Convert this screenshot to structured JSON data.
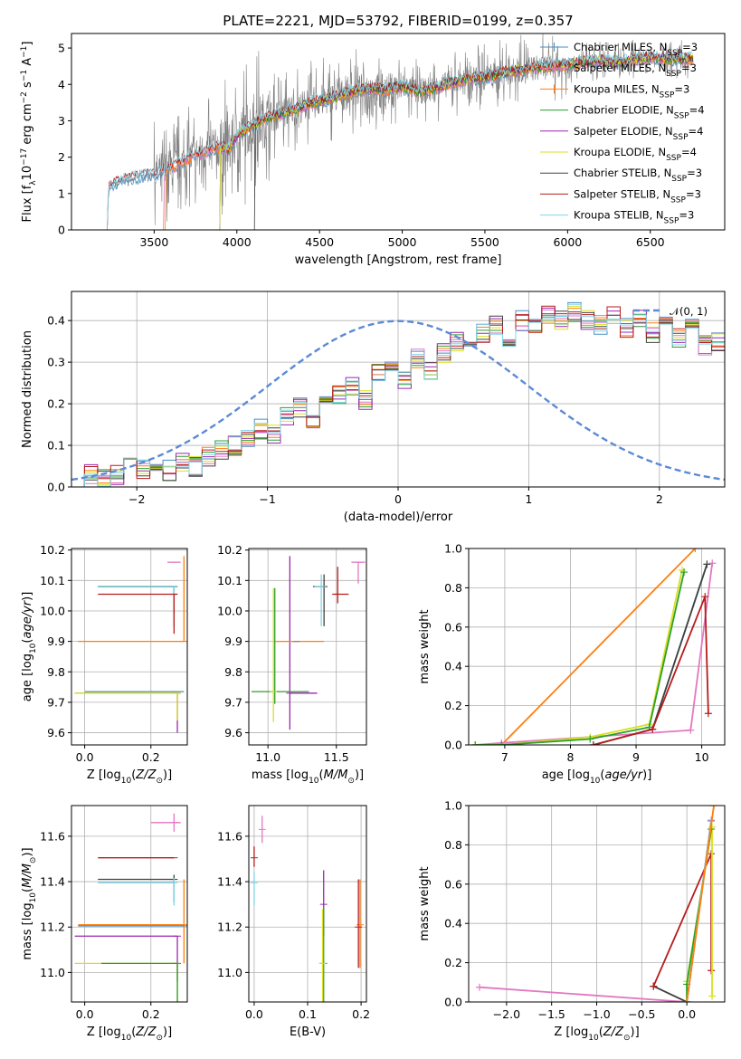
{
  "figure_title": "PLATE=2221, MJD=53792, FIBERID=0199, z=0.357",
  "colors": {
    "Chabrier MILES": "#4a8fc1",
    "Salpeter MILES": "#e377c2",
    "Kroupa MILES": "#ff7f0e",
    "Chabrier ELODIE": "#2ca02c",
    "Salpeter ELODIE": "#9c27b0",
    "Kroupa ELODIE": "#d9e021",
    "Chabrier STELIB": "#404040",
    "Salpeter STELIB": "#b71c1c",
    "Kroupa STELIB": "#80d4e8",
    "data": "#808080",
    "normal": "#5b8ad6"
  },
  "legend_spectrum": [
    {
      "name": "Chabrier MILES",
      "nssp": "3",
      "key": "Chabrier MILES"
    },
    {
      "name": "Salpeter MILES",
      "nssp": "3",
      "key": "Salpeter MILES"
    },
    {
      "name": "Kroupa MILES",
      "nssp": "3",
      "key": "Kroupa MILES"
    },
    {
      "name": "Chabrier ELODIE",
      "nssp": "4",
      "key": "Chabrier ELODIE"
    },
    {
      "name": "Salpeter ELODIE",
      "nssp": "4",
      "key": "Salpeter ELODIE"
    },
    {
      "name": "Kroupa ELODIE",
      "nssp": "4",
      "key": "Kroupa ELODIE"
    },
    {
      "name": "Chabrier STELIB",
      "nssp": "3",
      "key": "Chabrier STELIB"
    },
    {
      "name": "Salpeter STELIB",
      "nssp": "3",
      "key": "Salpeter STELIB"
    },
    {
      "name": "Kroupa STELIB",
      "nssp": "3",
      "key": "Kroupa STELIB"
    }
  ],
  "legend_hist": "𝒩(0, 1)",
  "chart_data": [
    {
      "id": "spectrum",
      "type": "line",
      "xlabel": "wavelength [Angstrom, rest frame]",
      "ylabel": "Flux [f_λ 10^-17 erg cm^-2 s^-1 A^-1]",
      "xlim": [
        3000,
        6950
      ],
      "ylim": [
        0,
        5.4
      ],
      "xticks": [
        3500,
        4000,
        4500,
        5000,
        5500,
        6000,
        6500
      ],
      "yticks": [
        0,
        1,
        2,
        3,
        4,
        5
      ],
      "model_continuum": [
        [
          3200,
          0.0
        ],
        [
          3230,
          1.2
        ],
        [
          3300,
          1.35
        ],
        [
          3400,
          1.45
        ],
        [
          3500,
          1.55
        ],
        [
          3600,
          1.7
        ],
        [
          3700,
          1.95
        ],
        [
          3800,
          2.15
        ],
        [
          3900,
          2.3
        ],
        [
          3950,
          2.2
        ],
        [
          4000,
          2.6
        ],
        [
          4100,
          2.9
        ],
        [
          4200,
          3.1
        ],
        [
          4300,
          3.25
        ],
        [
          4400,
          3.4
        ],
        [
          4500,
          3.55
        ],
        [
          4600,
          3.65
        ],
        [
          4700,
          3.8
        ],
        [
          4800,
          3.9
        ],
        [
          4900,
          3.85
        ],
        [
          5000,
          3.95
        ],
        [
          5100,
          3.8
        ],
        [
          5200,
          3.9
        ],
        [
          5300,
          4.05
        ],
        [
          5400,
          4.15
        ],
        [
          5500,
          4.2
        ],
        [
          5600,
          4.3
        ],
        [
          5700,
          4.4
        ],
        [
          5800,
          4.45
        ],
        [
          5900,
          4.5
        ],
        [
          6000,
          4.55
        ],
        [
          6100,
          4.6
        ],
        [
          6200,
          4.65
        ],
        [
          6300,
          4.6
        ],
        [
          6400,
          4.7
        ],
        [
          6500,
          4.75
        ],
        [
          6600,
          4.7
        ],
        [
          6760,
          4.7
        ]
      ],
      "grid": false
    },
    {
      "id": "residual_hist",
      "type": "step",
      "xlabel": "(data-model)/error",
      "ylabel": "Normed distribution",
      "xlim": [
        -2.5,
        2.5
      ],
      "ylim": [
        0,
        0.47
      ],
      "xticks": [
        -2,
        -1,
        0,
        1,
        2
      ],
      "yticks": [
        0.0,
        0.1,
        0.2,
        0.3,
        0.4
      ],
      "bin_width": 0.1,
      "bin_start": -2.5,
      "base_values": [
        0.02,
        0.03,
        0.02,
        0.03,
        0.05,
        0.04,
        0.05,
        0.04,
        0.06,
        0.05,
        0.07,
        0.09,
        0.1,
        0.12,
        0.14,
        0.13,
        0.17,
        0.19,
        0.16,
        0.2,
        0.22,
        0.24,
        0.21,
        0.27,
        0.3,
        0.26,
        0.31,
        0.28,
        0.32,
        0.35,
        0.33,
        0.37,
        0.39,
        0.35,
        0.4,
        0.38,
        0.41,
        0.4,
        0.42,
        0.4,
        0.39,
        0.41,
        0.38,
        0.4,
        0.37,
        0.39,
        0.36,
        0.38,
        0.34,
        0.35,
        0.33,
        0.31,
        0.32,
        0.29,
        0.3,
        0.28,
        0.26,
        0.25,
        0.24,
        0.2,
        0.22,
        0.18,
        0.19,
        0.16,
        0.15,
        0.13,
        0.12,
        0.11,
        0.1,
        0.09,
        0.08,
        0.07,
        0.08,
        0.06,
        0.07,
        0.05,
        0.06,
        0.05,
        0.04,
        0.05,
        0.04,
        0.04,
        0.05,
        0.04,
        0.03,
        0.04,
        0.03,
        0.04,
        0.03,
        0.04,
        0.05,
        0.04,
        0.03,
        0.04,
        0.04,
        0.05,
        0.04,
        0.04,
        0.05,
        0.04
      ],
      "grid": true
    },
    {
      "id": "age_vs_Z",
      "type": "errorbar",
      "xlabel": "Z [log10(Z/Z☉)]",
      "ylabel": "age [log10(age/yr)]",
      "xlim": [
        -0.04,
        0.31
      ],
      "ylim": [
        9.56,
        10.205
      ],
      "xticks": [
        0.0,
        0.2
      ],
      "yticks": [
        9.6,
        9.7,
        9.8,
        9.9,
        10.0,
        10.1,
        10.2
      ],
      "points": [
        {
          "s": "Salpeter MILES",
          "x": 0.27,
          "xe": [
            0.02,
            0.02
          ],
          "y": 10.16,
          "ye": [
            0,
            0.0
          ]
        },
        {
          "s": "Chabrier ELODIE",
          "x": 0.27,
          "xe": [
            0.23,
            0.01
          ],
          "y": 10.08,
          "ye": [
            0.13,
            0.0
          ]
        },
        {
          "s": "Chabrier STELIB",
          "x": 0.27,
          "xe": [
            0.23,
            0.01
          ],
          "y": 10.08,
          "ye": [
            0.09,
            0.0
          ]
        },
        {
          "s": "Kroupa STELIB",
          "x": 0.27,
          "xe": [
            0.23,
            0.01
          ],
          "y": 10.08,
          "ye": [
            0.13,
            0.0
          ]
        },
        {
          "s": "Salpeter STELIB",
          "x": 0.27,
          "xe": [
            0.23,
            0.01
          ],
          "y": 10.055,
          "ye": [
            0.13,
            0.0
          ]
        },
        {
          "s": "Kroupa MILES",
          "x": 0.3,
          "xe": [
            0.32,
            0.0
          ],
          "y": 9.9,
          "ye": [
            0,
            0.28
          ]
        },
        {
          "s": "Salpeter ELODIE",
          "x": 0.28,
          "xe": [
            0.31,
            0.0
          ],
          "y": 9.73,
          "ye": [
            0.13,
            0.0
          ]
        },
        {
          "s": "Chabrier MILES",
          "x": 0.27,
          "xe": [
            0.27,
            0.03
          ],
          "y": 9.735,
          "ye": [
            0.0,
            0.0
          ]
        },
        {
          "s": "Kroupa ELODIE",
          "x": 0.28,
          "xe": [
            0.31,
            0.0
          ],
          "y": 9.73,
          "ye": [
            0.09,
            0.0
          ]
        }
      ],
      "grid": true
    },
    {
      "id": "age_vs_mass",
      "type": "errorbar",
      "xlabel": "mass [log10(M/M☉)]",
      "ylabel": "",
      "xlim": [
        10.86,
        11.72
      ],
      "ylim": [
        9.56,
        10.205
      ],
      "xticks": [
        11.0,
        11.5
      ],
      "yticks": [
        9.6,
        9.7,
        9.8,
        9.9,
        10.0,
        10.1,
        10.2
      ],
      "points": [
        {
          "s": "Salpeter MILES",
          "x": 11.66,
          "xe": [
            0.05,
            0.05
          ],
          "y": 10.16,
          "ye": [
            0.07,
            0.0
          ]
        },
        {
          "s": "Salpeter STELIB",
          "x": 11.51,
          "xe": [
            0.04,
            0.08
          ],
          "y": 10.055,
          "ye": [
            0.03,
            0.09
          ]
        },
        {
          "s": "Chabrier STELIB",
          "x": 11.41,
          "xe": [
            0.08,
            0.0
          ],
          "y": 10.08,
          "ye": [
            0.13,
            0.04
          ]
        },
        {
          "s": "Kroupa STELIB",
          "x": 11.39,
          "xe": [
            0.05,
            0.0
          ],
          "y": 10.08,
          "ye": [
            0.13,
            0.04
          ]
        },
        {
          "s": "Salpeter ELODIE",
          "x": 11.16,
          "xe": [
            0.0,
            0.2
          ],
          "y": 9.73,
          "ye": [
            0.12,
            0.45
          ]
        },
        {
          "s": "Kroupa MILES",
          "x": 11.21,
          "xe": [
            0.17,
            0.2
          ],
          "y": 9.9,
          "ye": [
            0,
            0
          ]
        },
        {
          "s": "Chabrier ELODIE",
          "x": 11.05,
          "xe": [
            0.17,
            0.25
          ],
          "y": 9.735,
          "ye": [
            0.04,
            0.34
          ]
        },
        {
          "s": "Kroupa ELODIE",
          "x": 11.04,
          "xe": [
            0.0,
            0.0
          ],
          "y": 9.735,
          "ye": [
            0.1,
            0.34
          ]
        },
        {
          "s": "Chabrier MILES",
          "x": 11.21,
          "xe": [
            0.0,
            0.0
          ],
          "y": 9.9,
          "ye": [
            0.0,
            0.0
          ]
        }
      ],
      "grid": true
    },
    {
      "id": "massweight_vs_age",
      "type": "line",
      "xlabel": "age [log10(age/yr)]",
      "ylabel": "mass weight",
      "xlim": [
        6.45,
        10.35
      ],
      "ylim": [
        0,
        1.0
      ],
      "xticks": [
        7,
        8,
        9,
        10
      ],
      "yticks": [
        0.0,
        0.2,
        0.4,
        0.6,
        0.8,
        1.0
      ],
      "series": [
        {
          "s": "Kroupa MILES",
          "x": [
            6.55,
            6.95,
            9.9
          ],
          "y": [
            0.0,
            0.0,
            1.0
          ]
        },
        {
          "s": "Salpeter MILES",
          "x": [
            6.55,
            6.95,
            9.83,
            10.16
          ],
          "y": [
            0.0,
            0.01,
            0.075,
            0.925
          ]
        },
        {
          "s": "Kroupa ELODIE",
          "x": [
            6.55,
            6.95,
            8.3,
            9.2,
            9.7
          ],
          "y": [
            0.0,
            0.0,
            0.04,
            0.105,
            0.89
          ]
        },
        {
          "s": "Chabrier ELODIE",
          "x": [
            6.55,
            6.95,
            8.3,
            9.2,
            9.73
          ],
          "y": [
            0.0,
            0.0,
            0.03,
            0.09,
            0.88
          ]
        },
        {
          "s": "Kroupa STELIB",
          "x": [
            8.35,
            9.25,
            10.08
          ],
          "y": [
            0.0,
            0.08,
            0.92
          ]
        },
        {
          "s": "Chabrier STELIB",
          "x": [
            8.35,
            9.25,
            10.08
          ],
          "y": [
            0.0,
            0.08,
            0.92
          ]
        },
        {
          "s": "Salpeter STELIB",
          "x": [
            8.35,
            9.25,
            10.05,
            10.1
          ],
          "y": [
            0.0,
            0.08,
            0.755,
            0.16
          ]
        }
      ],
      "grid": true
    },
    {
      "id": "mass_vs_Z",
      "type": "errorbar",
      "xlabel": "Z [log10(Z/Z☉)]",
      "ylabel": "mass [log10(M/M☉)]",
      "xlim": [
        -0.04,
        0.31
      ],
      "ylim": [
        10.87,
        11.735
      ],
      "xticks": [
        0.0,
        0.2
      ],
      "yticks": [
        11.0,
        11.2,
        11.4,
        11.6
      ],
      "points": [
        {
          "s": "Salpeter MILES",
          "x": 0.27,
          "xe": [
            0.07,
            0.02
          ],
          "y": 11.66,
          "ye": [
            0.04,
            0.04
          ]
        },
        {
          "s": "Salpeter STELIB",
          "x": 0.27,
          "xe": [
            0.23,
            0.0
          ],
          "y": 11.505,
          "ye": [
            0,
            0
          ]
        },
        {
          "s": "Chabrier STELIB",
          "x": 0.27,
          "xe": [
            0.23,
            0.0
          ],
          "y": 11.41,
          "ye": [
            0.1,
            0.02
          ]
        },
        {
          "s": "Kroupa STELIB",
          "x": 0.27,
          "xe": [
            0.23,
            0.0
          ],
          "y": 11.395,
          "ye": [
            0.1,
            0.02
          ]
        },
        {
          "s": "Kroupa MILES",
          "x": 0.3,
          "xe": [
            0.32,
            0.0
          ],
          "y": 11.21,
          "ye": [
            0.17,
            0.2
          ]
        },
        {
          "s": "Chabrier MILES",
          "x": 0.3,
          "xe": [
            0.32,
            0.0
          ],
          "y": 11.205,
          "ye": [
            0,
            0
          ]
        },
        {
          "s": "Salpeter ELODIE",
          "x": 0.28,
          "xe": [
            0.31,
            0.0
          ],
          "y": 11.16,
          "ye": [
            0.2,
            0.0
          ]
        },
        {
          "s": "Kroupa ELODIE",
          "x": 0.28,
          "xe": [
            0.31,
            0.0
          ],
          "y": 11.04,
          "ye": [
            0.17,
            0.0
          ]
        },
        {
          "s": "Chabrier ELODIE",
          "x": 0.28,
          "xe": [
            0.23,
            0.0
          ],
          "y": 11.04,
          "ye": [
            0.17,
            0.0
          ]
        }
      ],
      "grid": true
    },
    {
      "id": "mass_vs_EBV",
      "type": "errorbar",
      "xlabel": "E(B-V)",
      "ylabel": "",
      "xlim": [
        -0.01,
        0.21
      ],
      "ylim": [
        10.87,
        11.735
      ],
      "xticks": [
        0.0,
        0.1,
        0.2
      ],
      "yticks": [
        11.0,
        11.2,
        11.4,
        11.6
      ],
      "points": [
        {
          "s": "Salpeter MILES",
          "x": 0.015,
          "xe": [
            0,
            0
          ],
          "y": 11.63,
          "ye": [
            0.06,
            0.06
          ]
        },
        {
          "s": "Salpeter STELIB",
          "x": 0.0,
          "xe": [
            0,
            0
          ],
          "y": 11.505,
          "ye": [
            0.04,
            0.05
          ]
        },
        {
          "s": "Kroupa STELIB",
          "x": 0.0,
          "xe": [
            0,
            0
          ],
          "y": 11.395,
          "ye": [
            0.1,
            0.05
          ]
        },
        {
          "s": "Salpeter ELODIE",
          "x": 0.13,
          "xe": [
            0,
            0
          ],
          "y": 11.3,
          "ye": [
            0.14,
            0.15
          ]
        },
        {
          "s": "Chabrier ELODIE",
          "x": 0.13,
          "xe": [
            0,
            0
          ],
          "y": 11.04,
          "ye": [
            0.17,
            0.25
          ]
        },
        {
          "s": "Kroupa ELODIE",
          "x": 0.128,
          "xe": [
            0,
            0
          ],
          "y": 11.04,
          "ye": [
            0.17,
            0.24
          ]
        },
        {
          "s": "Kroupa MILES",
          "x": 0.198,
          "xe": [
            0,
            0
          ],
          "y": 11.21,
          "ye": [
            0.19,
            0.2
          ]
        },
        {
          "s": "Salpeter STELIB",
          "x": 0.195,
          "xe": [
            0,
            0
          ],
          "y": 11.2,
          "ye": [
            0.18,
            0.21
          ]
        }
      ],
      "grid": true
    },
    {
      "id": "massweight_vs_Z",
      "type": "line",
      "xlabel": "Z [log10(Z/Z☉)]",
      "ylabel": "mass weight",
      "xlim": [
        -2.42,
        0.42
      ],
      "ylim": [
        0,
        1.0
      ],
      "xticks": [
        -2.0,
        -1.5,
        -1.0,
        -0.5,
        0.0
      ],
      "yticks": [
        0.0,
        0.2,
        0.4,
        0.6,
        0.8,
        1.0
      ],
      "series": [
        {
          "s": "Salpeter MILES",
          "x": [
            -2.3,
            0.0,
            0.27
          ],
          "y": [
            0.075,
            0.0,
            0.925
          ]
        },
        {
          "s": "Chabrier STELIB",
          "x": [
            -0.37,
            0.0,
            0.27
          ],
          "y": [
            0.08,
            0.0,
            0.92
          ]
        },
        {
          "s": "Salpeter STELIB",
          "x": [
            -0.37,
            0.27,
            0.27
          ],
          "y": [
            0.08,
            0.755,
            0.16
          ]
        },
        {
          "s": "Kroupa ELODIE",
          "x": [
            0.0,
            0.0,
            0.28,
            0.28
          ],
          "y": [
            0.0,
            0.105,
            0.89,
            0.03
          ]
        },
        {
          "s": "Chabrier ELODIE",
          "x": [
            0.0,
            0.0,
            0.27
          ],
          "y": [
            0.0,
            0.09,
            0.88
          ]
        },
        {
          "s": "Kroupa STELIB",
          "x": [
            0.0,
            0.27
          ],
          "y": [
            0.0,
            0.92
          ]
        },
        {
          "s": "Kroupa MILES",
          "x": [
            0.0,
            0.3
          ],
          "y": [
            0.0,
            1.0
          ]
        }
      ],
      "grid": true
    }
  ]
}
